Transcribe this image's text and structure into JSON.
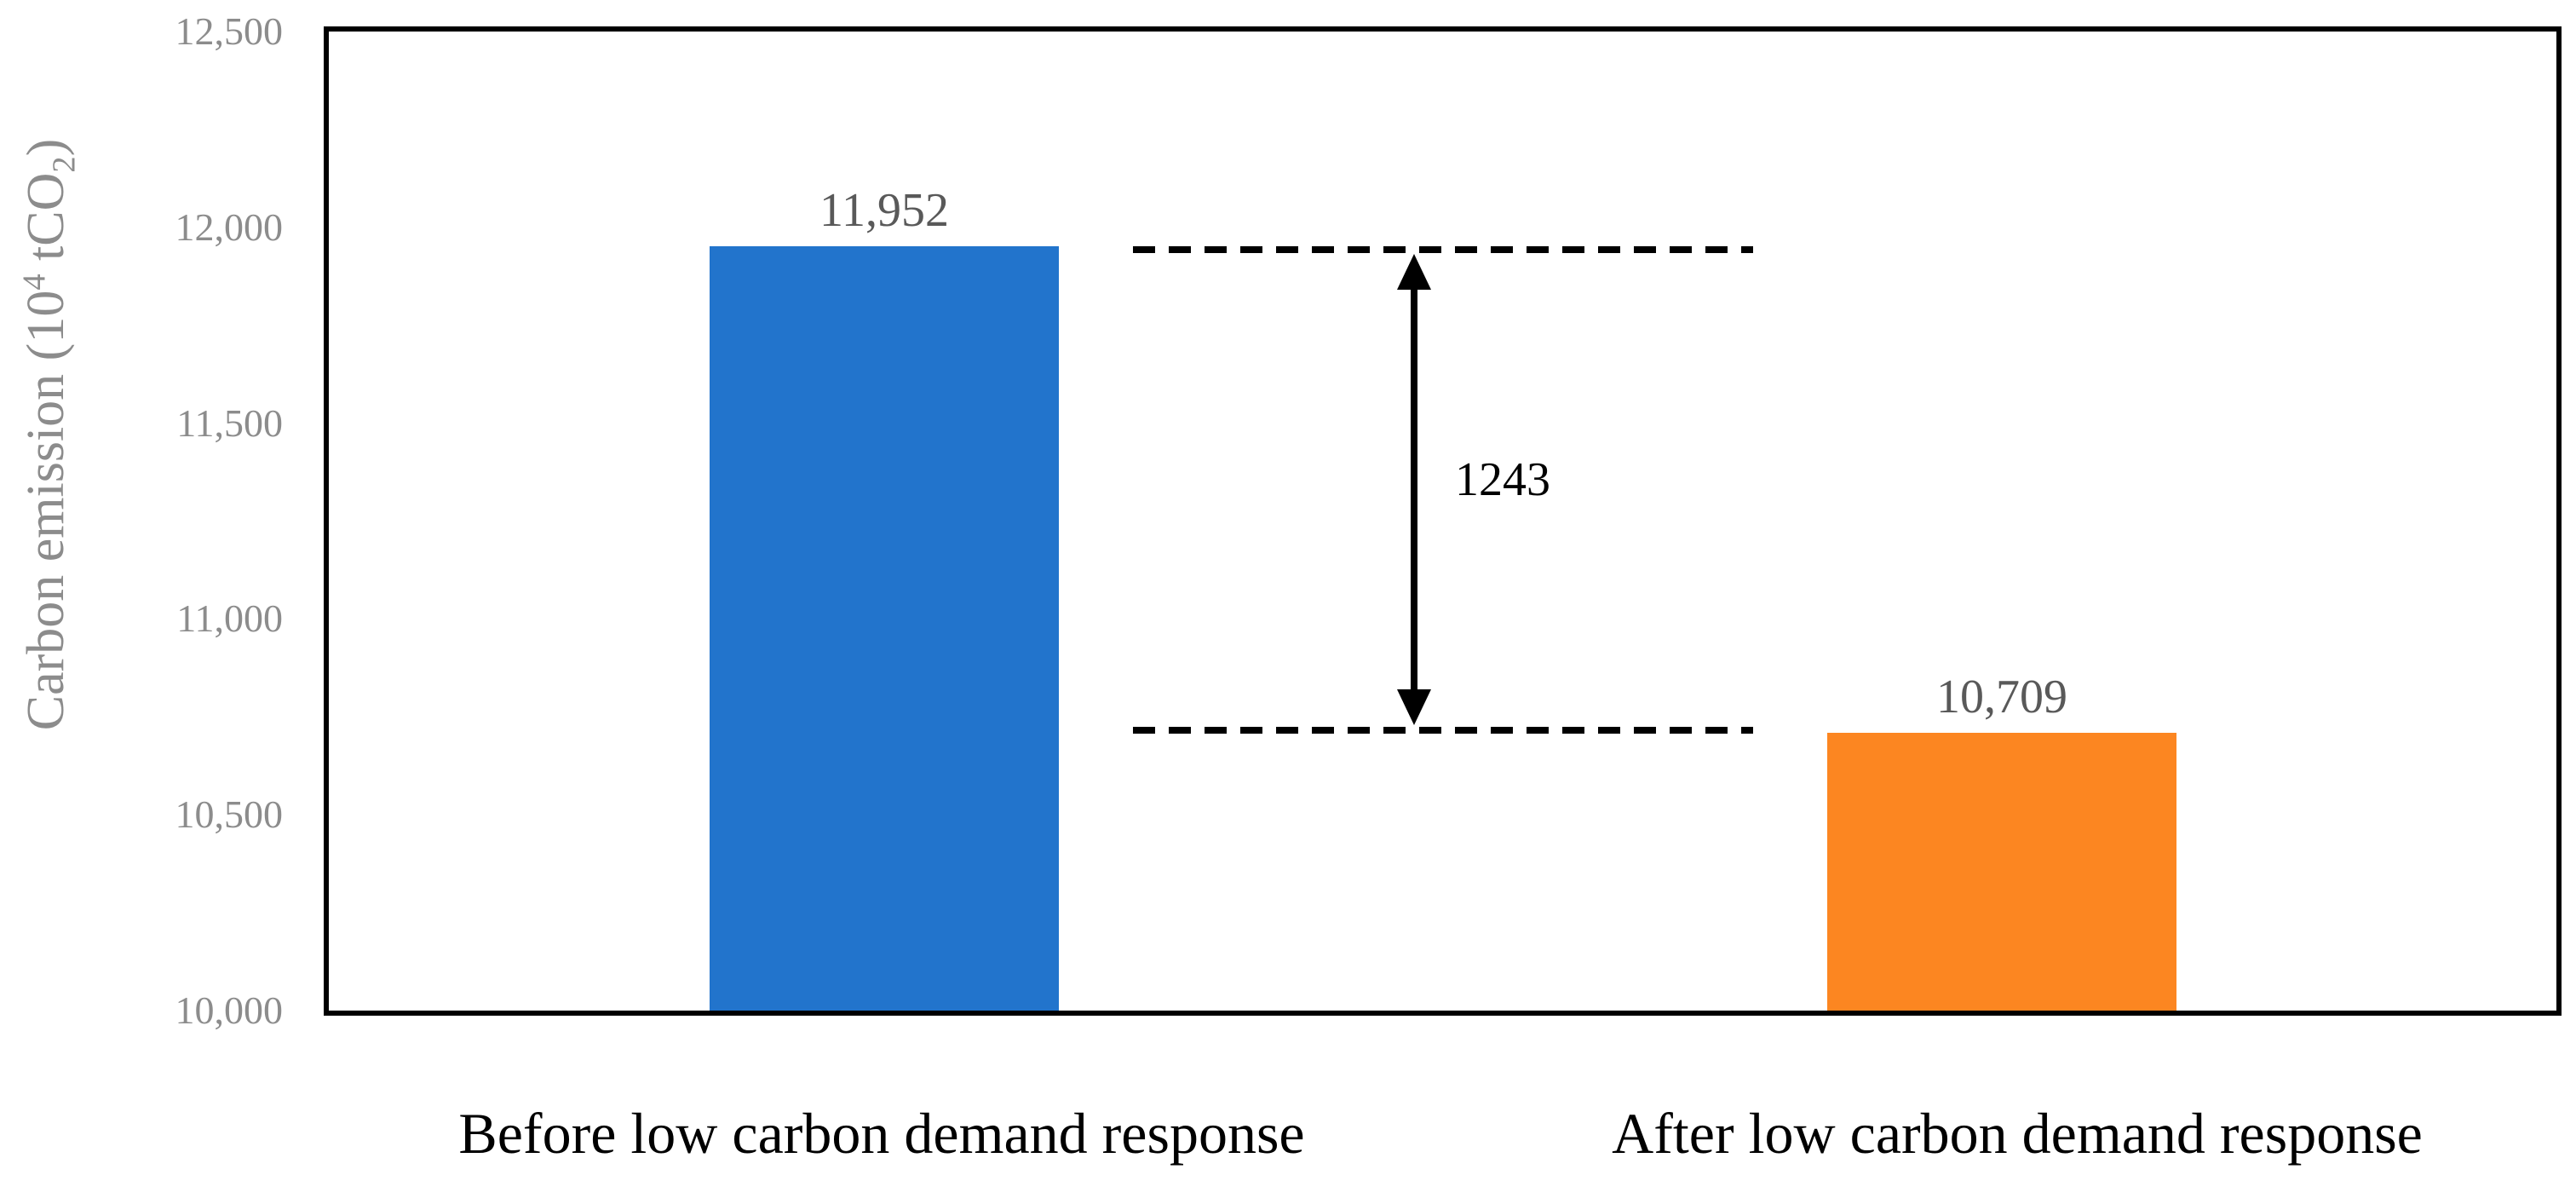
{
  "chart_data": {
    "type": "bar",
    "title": "",
    "categories": [
      "Before low carbon demand response",
      "After low carbon demand response"
    ],
    "series": [
      {
        "name": "Carbon emission",
        "values": [
          11952,
          10709
        ]
      }
    ],
    "value_labels": [
      "11,952",
      "10,709"
    ],
    "ylabel": "Carbon emission (10^4 tCO2)",
    "ylabel_parts": {
      "main": "Carbon emission (10",
      "sup": "4",
      "mid": " tCO",
      "sub": "2",
      "end": ")"
    },
    "ylim": [
      10000,
      12500
    ],
    "ytick_step": 500,
    "ytick_labels_top_to_bottom": [
      "12,500",
      "12,000",
      "11,500",
      "11,000",
      "10,500",
      "10,000"
    ],
    "bar_colors": [
      "#2274CC",
      "#FC8621"
    ],
    "annotation": {
      "label": "1243",
      "value": 1243
    },
    "grid": false,
    "legend_position": "none",
    "colors": {
      "background": "#FFFFFF",
      "plot_border": "#000000",
      "tick_text": "#8C8C8C",
      "axis_title_text": "#8C8C8C",
      "value_label_text": "#595959",
      "category_text": "#000000",
      "annotation_text": "#000000",
      "dash_line": "#000000",
      "arrow": "#000000"
    }
  }
}
